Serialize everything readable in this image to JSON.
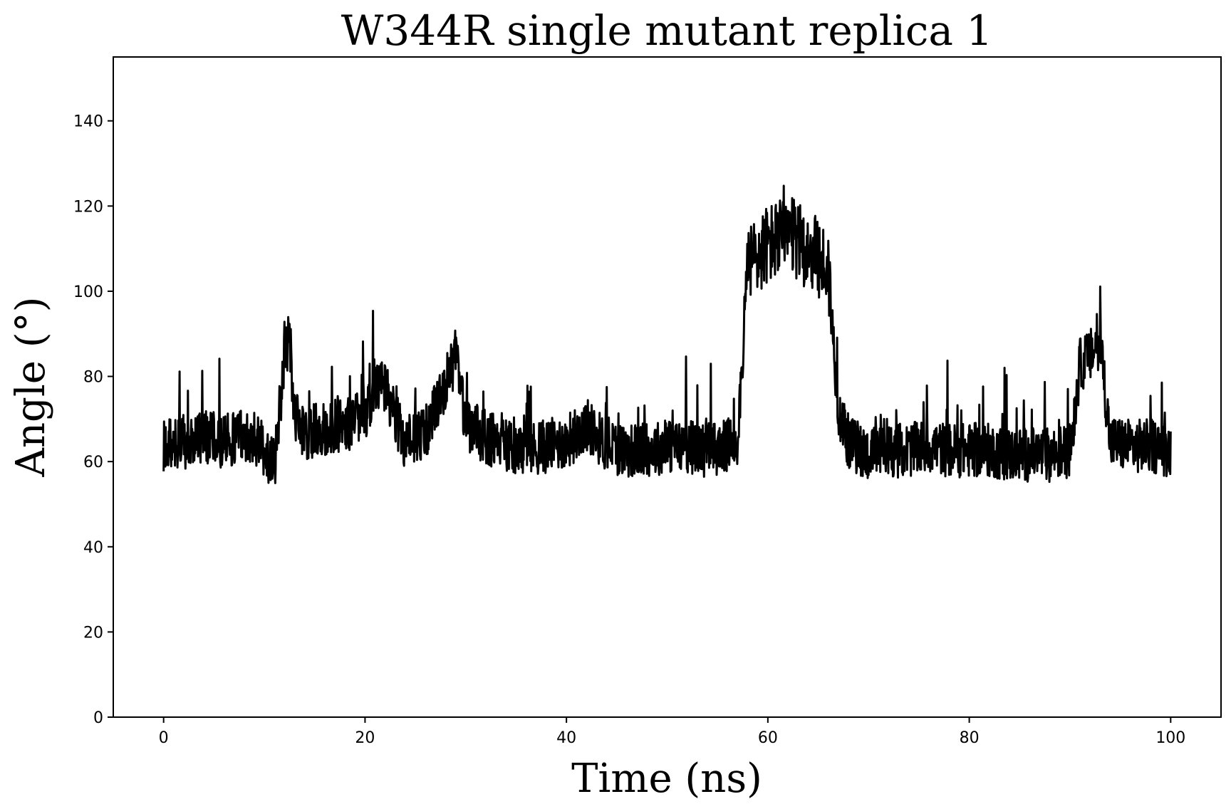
{
  "chart_data": {
    "type": "line",
    "title": "W344R single mutant replica 1",
    "xlabel": "Time (ns)",
    "ylabel": "Angle (°)",
    "xlim": [
      -5,
      105
    ],
    "ylim": [
      0,
      155
    ],
    "xticks": [
      0,
      20,
      40,
      60,
      80,
      100
    ],
    "yticks": [
      0,
      20,
      40,
      60,
      80,
      100,
      120,
      140
    ],
    "grid": false,
    "line_color": "#000000",
    "series": [
      {
        "x": [
          0,
          2,
          4,
          6,
          8,
          9,
          10,
          11,
          12,
          12.5,
          13,
          14,
          16,
          18,
          20,
          21,
          22,
          24,
          26,
          28,
          29,
          30,
          32,
          34,
          36,
          38,
          40,
          42,
          44,
          46,
          48,
          50,
          52,
          54,
          56,
          57,
          58,
          60,
          62,
          64,
          66,
          67,
          68,
          70,
          72,
          74,
          76,
          78,
          80,
          82,
          84,
          86,
          88,
          90,
          91,
          92,
          93,
          94,
          96,
          98,
          100
        ],
        "y": [
          63,
          64,
          65,
          64,
          66,
          65,
          62,
          58,
          84,
          88,
          70,
          66,
          67,
          68,
          70,
          78,
          76,
          64,
          66,
          78,
          84,
          68,
          65,
          63,
          62,
          63,
          64,
          68,
          63,
          62,
          62,
          63,
          63,
          62,
          63,
          65,
          105,
          110,
          112,
          109,
          104,
          72,
          64,
          61,
          62,
          62,
          63,
          62,
          62,
          62,
          61,
          61,
          61,
          62,
          82,
          84,
          88,
          64,
          63,
          63,
          62
        ]
      }
    ]
  }
}
